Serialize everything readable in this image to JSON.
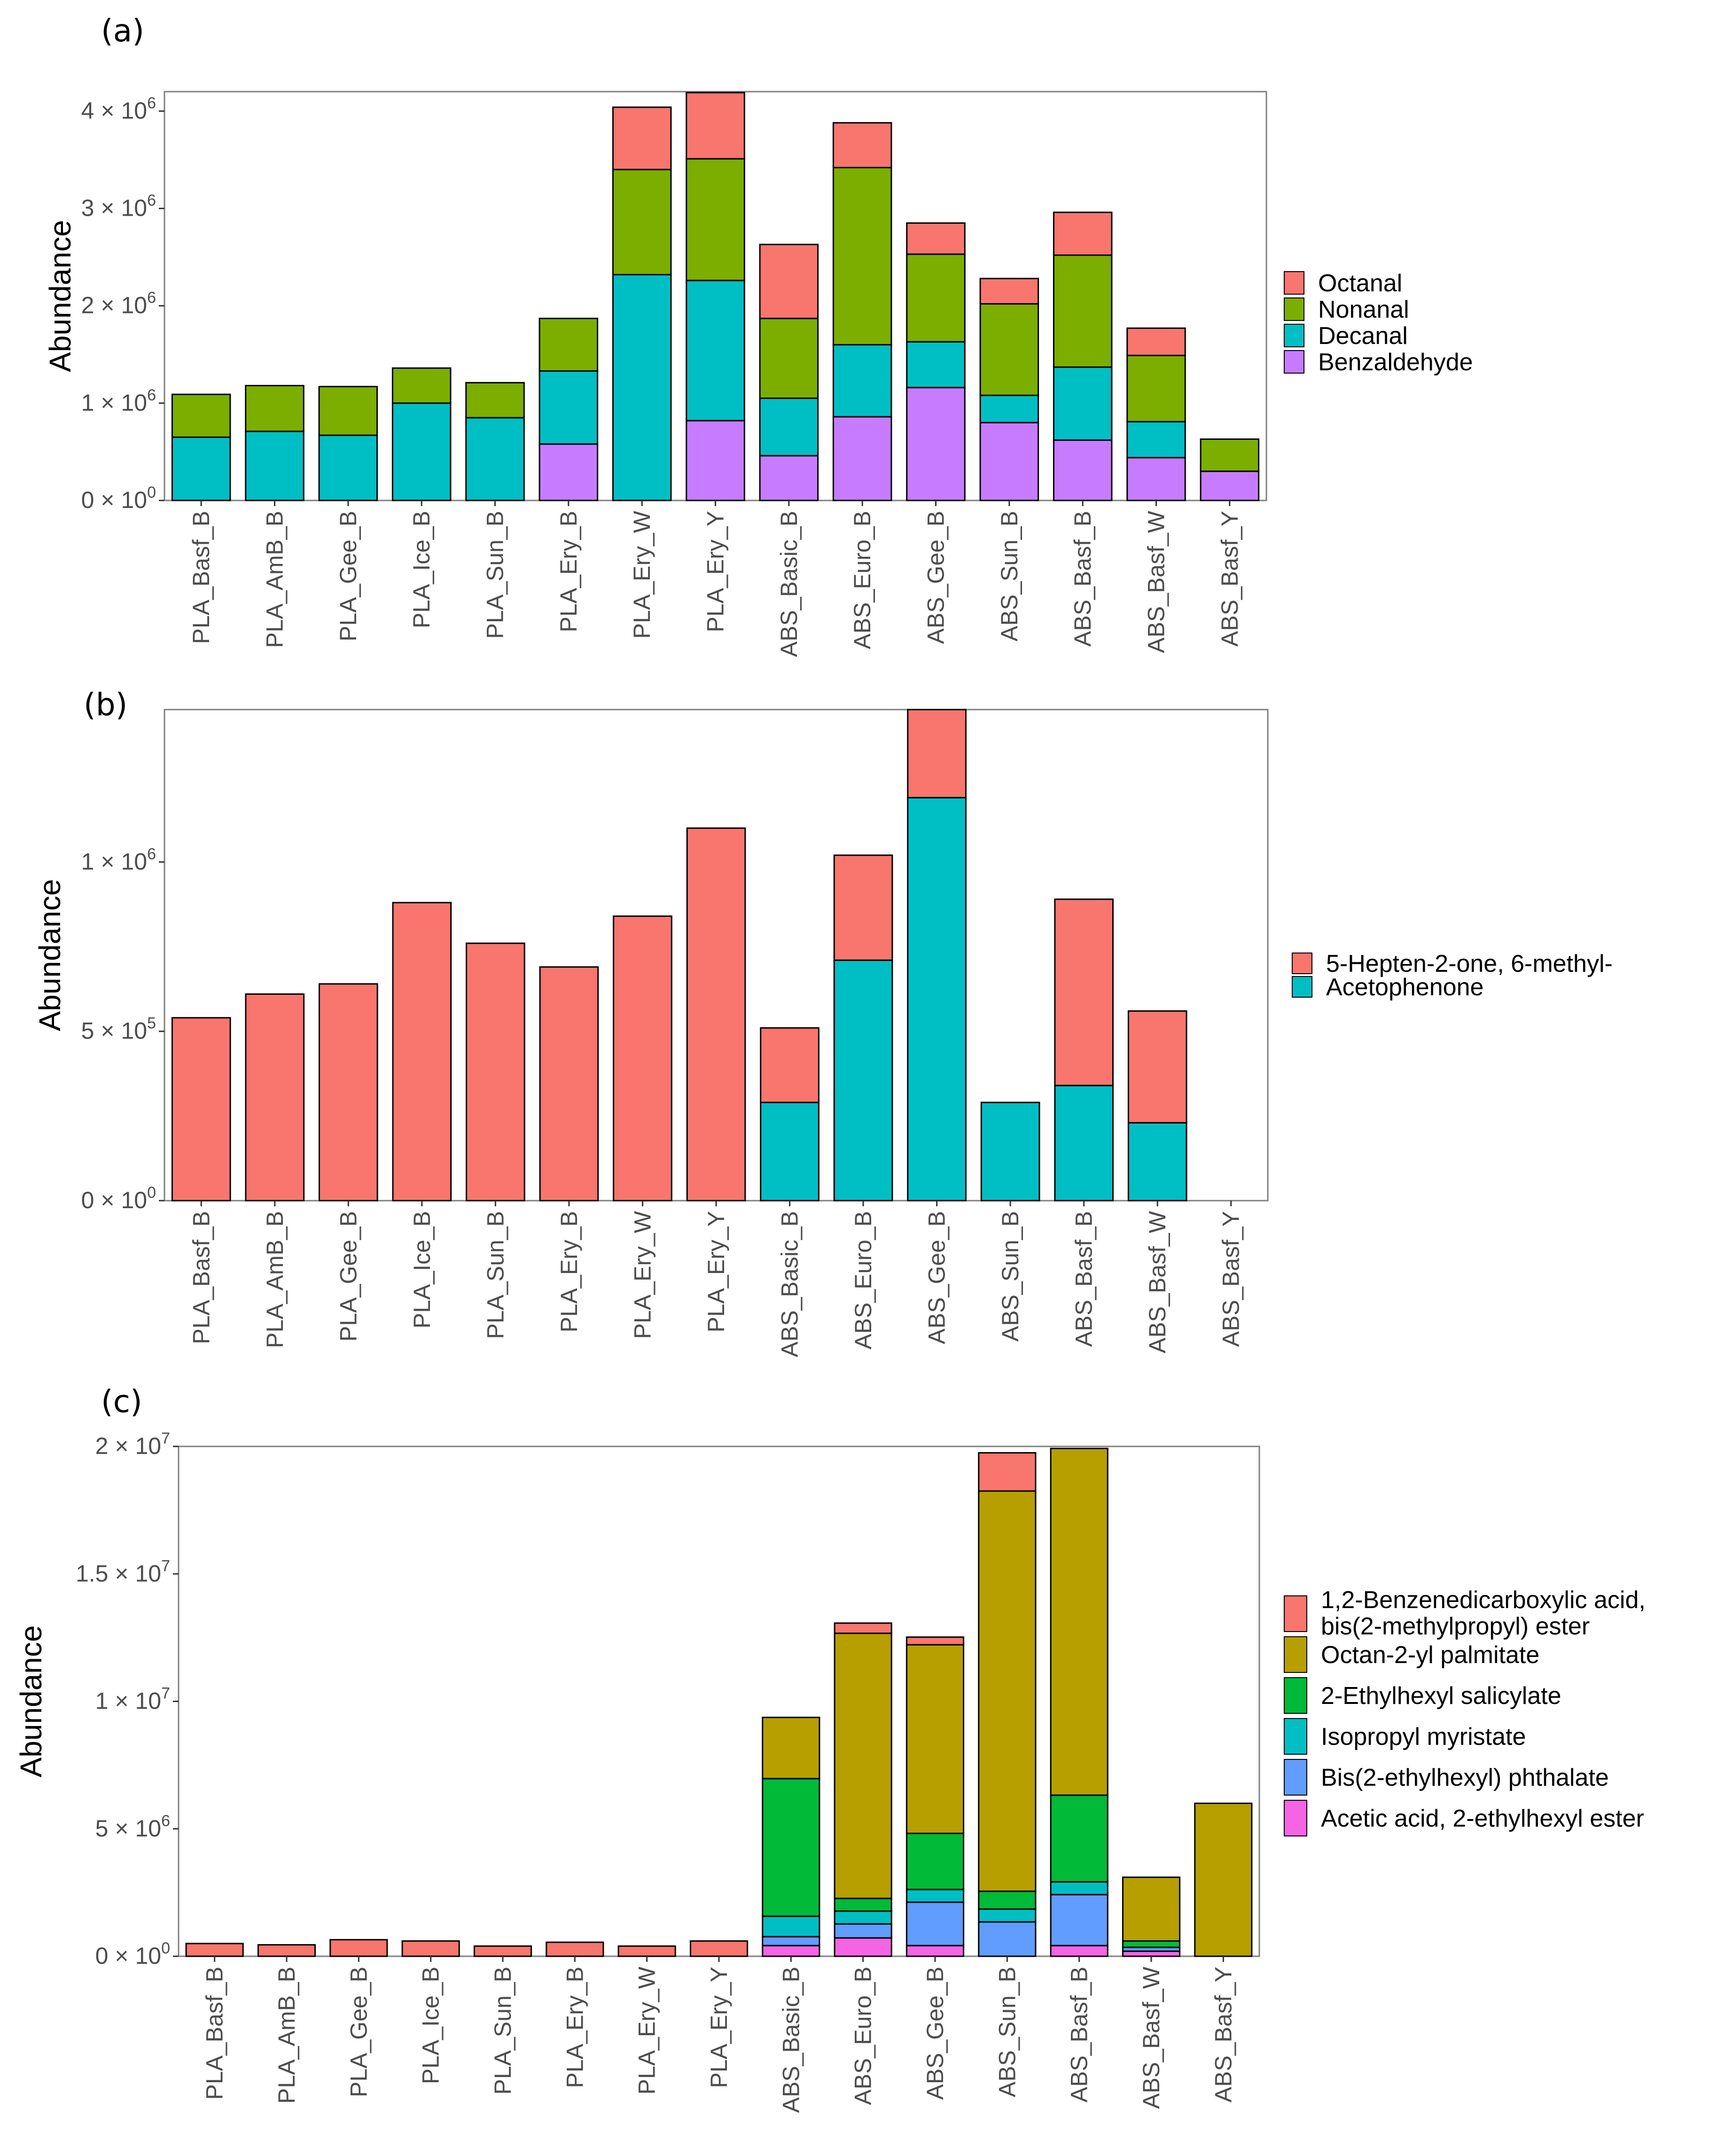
{
  "chart_data": [
    {
      "panel_label": "(a)",
      "type": "bar",
      "stacked": true,
      "ylabel": "Abundance",
      "ylim": [
        0,
        4200000
      ],
      "yticks": [
        {
          "value": 0,
          "mantissa": "0",
          "exp": "0"
        },
        {
          "value": 1000000,
          "mantissa": "1",
          "exp": "6"
        },
        {
          "value": 2000000,
          "mantissa": "2",
          "exp": "6"
        },
        {
          "value": 3000000,
          "mantissa": "3",
          "exp": "6"
        },
        {
          "value": 4000000,
          "mantissa": "4",
          "exp": "6"
        }
      ],
      "categories": [
        "PLA_Basf_B",
        "PLA_AmB_B",
        "PLA_Gee_B",
        "PLA_Ice_B",
        "PLA_Sun_B",
        "PLA_Ery_B",
        "PLA_Ery_W",
        "PLA_Ery_Y",
        "ABS_Basic_B",
        "ABS_Euro_B",
        "ABS_Gee_B",
        "ABS_Sun_B",
        "ABS_Basf_B",
        "ABS_Basf_W",
        "ABS_Basf_Y"
      ],
      "legend_position": "right",
      "series": [
        {
          "name": "Octanal",
          "color": "#F8766D",
          "values": [
            0,
            0,
            0,
            0,
            0,
            0,
            640000,
            680000,
            760000,
            460000,
            320000,
            260000,
            440000,
            280000,
            0
          ]
        },
        {
          "name": "Nonanal",
          "color": "#7CAE00",
          "values": [
            440000,
            470000,
            500000,
            360000,
            360000,
            540000,
            1080000,
            1250000,
            820000,
            1820000,
            900000,
            940000,
            1150000,
            680000,
            330000
          ]
        },
        {
          "name": "Decanal",
          "color": "#00BFC4",
          "values": [
            650000,
            710000,
            670000,
            1000000,
            850000,
            750000,
            2320000,
            1440000,
            590000,
            740000,
            470000,
            280000,
            750000,
            370000,
            0
          ]
        },
        {
          "name": "Benzaldehyde",
          "color": "#C77CFF",
          "values": [
            0,
            0,
            0,
            0,
            0,
            580000,
            0,
            820000,
            460000,
            860000,
            1160000,
            800000,
            620000,
            440000,
            300000
          ]
        }
      ]
    },
    {
      "panel_label": "(b)",
      "type": "bar",
      "stacked": true,
      "ylabel": "Abundance",
      "ylim": [
        0,
        1450000
      ],
      "yticks": [
        {
          "value": 0,
          "mantissa": "0",
          "exp": "0"
        },
        {
          "value": 500000,
          "mantissa": "5",
          "exp": "5"
        },
        {
          "value": 1000000,
          "mantissa": "1",
          "exp": "6"
        }
      ],
      "categories": [
        "PLA_Basf_B",
        "PLA_AmB_B",
        "PLA_Gee_B",
        "PLA_Ice_B",
        "PLA_Sun_B",
        "PLA_Ery_B",
        "PLA_Ery_W",
        "PLA_Ery_Y",
        "ABS_Basic_B",
        "ABS_Euro_B",
        "ABS_Gee_B",
        "ABS_Sun_B",
        "ABS_Basf_B",
        "ABS_Basf_W",
        "ABS_Basf_Y"
      ],
      "legend_position": "right",
      "series": [
        {
          "name": "5-Hepten-2-one, 6-methyl-",
          "color": "#F8766D",
          "values": [
            540000,
            610000,
            640000,
            880000,
            760000,
            690000,
            840000,
            1100000,
            220000,
            310000,
            260000,
            0,
            550000,
            330000,
            0
          ]
        },
        {
          "name": "Acetophenone",
          "color": "#00BFC4",
          "values": [
            0,
            0,
            0,
            0,
            0,
            0,
            0,
            0,
            290000,
            710000,
            1190000,
            290000,
            340000,
            230000,
            0
          ]
        }
      ]
    },
    {
      "panel_label": "(c)",
      "type": "bar",
      "stacked": true,
      "ylabel": "Abundance",
      "ylim": [
        0,
        20000000
      ],
      "yticks": [
        {
          "value": 0,
          "mantissa": "0",
          "exp": "0"
        },
        {
          "value": 5000000,
          "mantissa": "5",
          "exp": "6"
        },
        {
          "value": 10000000,
          "mantissa": "1",
          "exp": "7"
        },
        {
          "value": 15000000,
          "mantissa": "1.5",
          "exp": "7"
        },
        {
          "value": 20000000,
          "mantissa": "2",
          "exp": "7"
        }
      ],
      "categories": [
        "PLA_Basf_B",
        "PLA_AmB_B",
        "PLA_Gee_B",
        "PLA_Ice_B",
        "PLA_Sun_B",
        "PLA_Ery_B",
        "PLA_Ery_W",
        "PLA_Ery_Y",
        "ABS_Basic_B",
        "ABS_Euro_B",
        "ABS_Gee_B",
        "ABS_Sun_B",
        "ABS_Basf_B",
        "ABS_Basf_W",
        "ABS_Basf_Y"
      ],
      "legend_position": "right",
      "series": [
        {
          "name": "1,2-Benzenedicarboxylic acid,\nbis(2-methylpropyl) ester",
          "color": "#F8766D",
          "values": [
            500000,
            450000,
            650000,
            600000,
            400000,
            550000,
            400000,
            600000,
            0,
            400000,
            300000,
            1500000,
            0,
            0,
            0
          ]
        },
        {
          "name": "Octan-2-yl palmitate",
          "color": "#B79F00",
          "values": [
            0,
            0,
            0,
            0,
            0,
            0,
            0,
            0,
            2400000,
            10400000,
            7400000,
            15700000,
            13600000,
            2500000,
            6000000
          ]
        },
        {
          "name": "2-Ethylhexyl salicylate",
          "color": "#00BA38",
          "values": [
            0,
            0,
            0,
            0,
            0,
            0,
            0,
            0,
            5400000,
            500000,
            2200000,
            700000,
            3400000,
            250000,
            0
          ]
        },
        {
          "name": "Isopropyl myristate",
          "color": "#00BFC4",
          "values": [
            0,
            0,
            0,
            0,
            0,
            0,
            0,
            0,
            800000,
            500000,
            500000,
            500000,
            500000,
            0,
            0
          ]
        },
        {
          "name": "Bis(2-ethylhexyl) phthalate",
          "color": "#619CFF",
          "values": [
            0,
            0,
            0,
            0,
            0,
            0,
            0,
            0,
            350000,
            550000,
            1700000,
            1350000,
            2000000,
            150000,
            0
          ]
        },
        {
          "name": "Acetic acid, 2-ethylhexyl ester",
          "color": "#F564E3",
          "values": [
            0,
            0,
            0,
            0,
            0,
            0,
            0,
            0,
            420000,
            720000,
            420000,
            0,
            420000,
            200000,
            0
          ]
        }
      ]
    }
  ]
}
